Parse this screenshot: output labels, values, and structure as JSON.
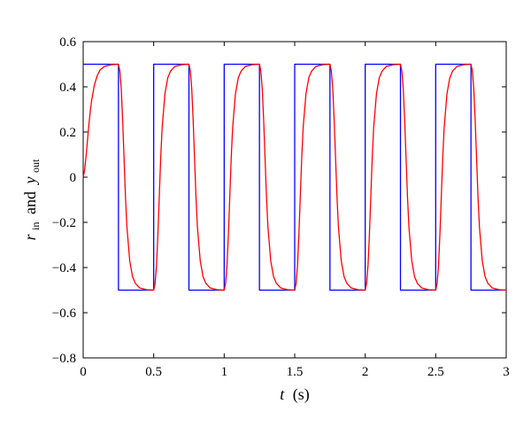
{
  "chart_data": {
    "type": "line",
    "title": "",
    "xlabel": {
      "main": "t",
      "unit": "(s)"
    },
    "ylabel": {
      "r": "r",
      "r_sub": "in",
      "and": "and",
      "y": "y",
      "y_sub": "out"
    },
    "xlim": [
      0,
      3
    ],
    "ylim": [
      -0.8,
      0.6
    ],
    "grid": false,
    "legend": "none",
    "xticks": [
      0,
      0.5,
      1,
      1.5,
      2,
      2.5,
      3
    ],
    "xtick_labels": [
      "0",
      "0.5",
      "1",
      "1.5",
      "2",
      "2.5",
      "3"
    ],
    "yticks": [
      -0.8,
      -0.6,
      -0.4,
      -0.2,
      0,
      0.2,
      0.4,
      0.6
    ],
    "ytick_labels": [
      "−0.8",
      "−0.6",
      "−0.4",
      "−0.2",
      "0",
      "0.2",
      "0.4",
      "0.6"
    ],
    "series": [
      {
        "key": "r_in",
        "color": "#0000ff",
        "x": [
          0,
          0.25,
          0.25,
          0.5,
          0.5,
          0.75,
          0.75,
          1.0,
          1.0,
          1.25,
          1.25,
          1.5,
          1.5,
          1.75,
          1.75,
          2.0,
          2.0,
          2.25,
          2.25,
          2.5,
          2.5,
          2.75,
          2.75,
          3.0
        ],
        "y": [
          0.5,
          0.5,
          -0.5,
          -0.5,
          0.5,
          0.5,
          -0.5,
          -0.5,
          0.5,
          0.5,
          -0.5,
          -0.5,
          0.5,
          0.5,
          -0.5,
          -0.5,
          0.5,
          0.5,
          -0.5,
          -0.5,
          0.5,
          0.5,
          -0.5,
          -0.5
        ]
      },
      {
        "key": "y_out",
        "color": "#ff0000",
        "x": [
          0,
          0.01,
          0.02,
          0.03,
          0.04,
          0.05,
          0.06,
          0.08,
          0.1,
          0.12,
          0.15,
          0.2,
          0.25,
          0.26,
          0.27,
          0.28,
          0.29,
          0.3,
          0.31,
          0.33,
          0.35,
          0.37,
          0.4,
          0.45,
          0.5,
          0.51,
          0.52,
          0.53,
          0.54,
          0.55,
          0.56,
          0.58,
          0.6,
          0.62,
          0.65,
          0.7,
          0.75,
          0.76,
          0.77,
          0.78,
          0.79,
          0.8,
          0.81,
          0.83,
          0.85,
          0.87,
          0.9,
          0.95,
          1.0,
          1.01,
          1.02,
          1.03,
          1.04,
          1.05,
          1.06,
          1.08,
          1.1,
          1.12,
          1.15,
          1.2,
          1.25,
          1.26,
          1.27,
          1.28,
          1.29,
          1.3,
          1.31,
          1.33,
          1.35,
          1.37,
          1.4,
          1.45,
          1.5,
          1.51,
          1.52,
          1.53,
          1.54,
          1.55,
          1.56,
          1.58,
          1.6,
          1.62,
          1.65,
          1.7,
          1.75,
          1.76,
          1.77,
          1.78,
          1.79,
          1.8,
          1.81,
          1.83,
          1.85,
          1.87,
          1.9,
          1.95,
          2.0,
          2.01,
          2.02,
          2.03,
          2.04,
          2.05,
          2.06,
          2.08,
          2.1,
          2.12,
          2.15,
          2.2,
          2.25,
          2.26,
          2.27,
          2.28,
          2.29,
          2.3,
          2.31,
          2.33,
          2.35,
          2.37,
          2.4,
          2.45,
          2.5,
          2.51,
          2.52,
          2.53,
          2.54,
          2.55,
          2.56,
          2.58,
          2.6,
          2.62,
          2.65,
          2.7,
          2.75,
          2.76,
          2.77,
          2.78,
          2.79,
          2.8,
          2.81,
          2.83,
          2.85,
          2.87,
          2.9,
          2.95,
          3.0
        ],
        "y": [
          0,
          0.03,
          0.09,
          0.16,
          0.23,
          0.29,
          0.34,
          0.41,
          0.45,
          0.475,
          0.49,
          0.498,
          0.5,
          0.47,
          0.39,
          0.25,
          0.08,
          -0.09,
          -0.22,
          -0.37,
          -0.44,
          -0.47,
          -0.49,
          -0.498,
          -0.5,
          -0.47,
          -0.39,
          -0.25,
          -0.08,
          0.09,
          0.22,
          0.37,
          0.44,
          0.47,
          0.49,
          0.498,
          0.5,
          0.47,
          0.39,
          0.25,
          0.08,
          -0.09,
          -0.22,
          -0.37,
          -0.44,
          -0.47,
          -0.49,
          -0.498,
          -0.5,
          -0.47,
          -0.39,
          -0.25,
          -0.08,
          0.09,
          0.22,
          0.37,
          0.44,
          0.47,
          0.49,
          0.498,
          0.5,
          0.47,
          0.39,
          0.25,
          0.08,
          -0.09,
          -0.22,
          -0.37,
          -0.44,
          -0.47,
          -0.49,
          -0.498,
          -0.5,
          -0.47,
          -0.39,
          -0.25,
          -0.08,
          0.09,
          0.22,
          0.37,
          0.44,
          0.47,
          0.49,
          0.498,
          0.5,
          0.47,
          0.39,
          0.25,
          0.08,
          -0.09,
          -0.22,
          -0.37,
          -0.44,
          -0.47,
          -0.49,
          -0.498,
          -0.5,
          -0.47,
          -0.39,
          -0.25,
          -0.08,
          0.09,
          0.22,
          0.37,
          0.44,
          0.47,
          0.49,
          0.498,
          0.5,
          0.47,
          0.39,
          0.25,
          0.08,
          -0.09,
          -0.22,
          -0.37,
          -0.44,
          -0.47,
          -0.49,
          -0.498,
          -0.5,
          -0.47,
          -0.39,
          -0.25,
          -0.08,
          0.09,
          0.22,
          0.37,
          0.44,
          0.47,
          0.49,
          0.498,
          0.5,
          0.47,
          0.39,
          0.25,
          0.08,
          -0.09,
          -0.22,
          -0.37,
          -0.44,
          -0.47,
          -0.49,
          -0.498,
          -0.5
        ]
      }
    ]
  }
}
